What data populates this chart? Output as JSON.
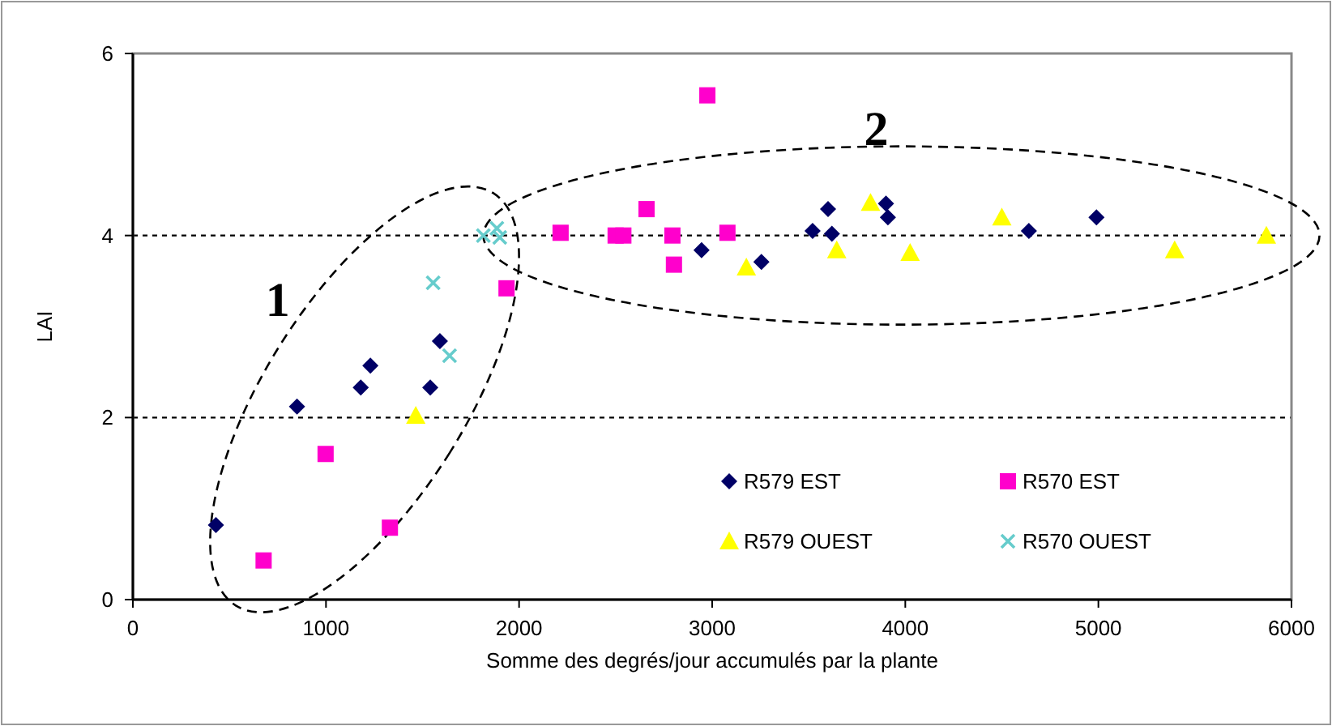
{
  "chart_data": {
    "type": "scatter",
    "xlabel": "Somme des degrés/jour accumulés par la plante",
    "ylabel": "LAI",
    "xlim": [
      0,
      6000
    ],
    "xticks": [
      0,
      1000,
      2000,
      3000,
      4000,
      5000,
      6000
    ],
    "ylim": [
      0,
      6
    ],
    "yticks": [
      0,
      2,
      4,
      6
    ],
    "grid": "y",
    "legend": "bottom right",
    "annotations": [
      "1",
      "2"
    ],
    "series": [
      {
        "name": "R579 EST",
        "color": "#000066",
        "marker": "diamond",
        "x": [
          430,
          850,
          1180,
          1230,
          1540,
          1590,
          2945,
          3255,
          3520,
          3600,
          3620,
          3900,
          3910,
          4640,
          4990
        ],
        "values": [
          0.82,
          2.12,
          2.33,
          2.57,
          2.33,
          2.84,
          3.84,
          3.71,
          4.05,
          4.29,
          4.02,
          4.35,
          4.2,
          4.05,
          4.2
        ]
      },
      {
        "name": "R570 EST",
        "color": "#ff00cc",
        "marker": "square",
        "x": [
          677,
          998,
          1331,
          1935,
          2215,
          2500,
          2540,
          2660,
          2794,
          2802,
          3079,
          2975
        ],
        "values": [
          0.43,
          1.6,
          0.79,
          3.42,
          4.03,
          4.0,
          4.0,
          4.29,
          4.0,
          3.68,
          4.03,
          5.54
        ]
      },
      {
        "name": "R579 OUEST",
        "color": "#ffff00",
        "marker": "triangle",
        "x": [
          1465,
          3177,
          3645,
          3820,
          4025,
          4500,
          5395,
          5870
        ],
        "values": [
          2.02,
          3.65,
          3.84,
          4.36,
          3.81,
          4.2,
          3.84,
          4.0
        ]
      },
      {
        "name": "R570 OUEST",
        "color": "#66cccc",
        "marker": "cross",
        "x": [
          1555,
          1640,
          1815,
          1885,
          1900
        ],
        "values": [
          3.48,
          2.68,
          4.0,
          4.08,
          3.98
        ]
      }
    ]
  }
}
